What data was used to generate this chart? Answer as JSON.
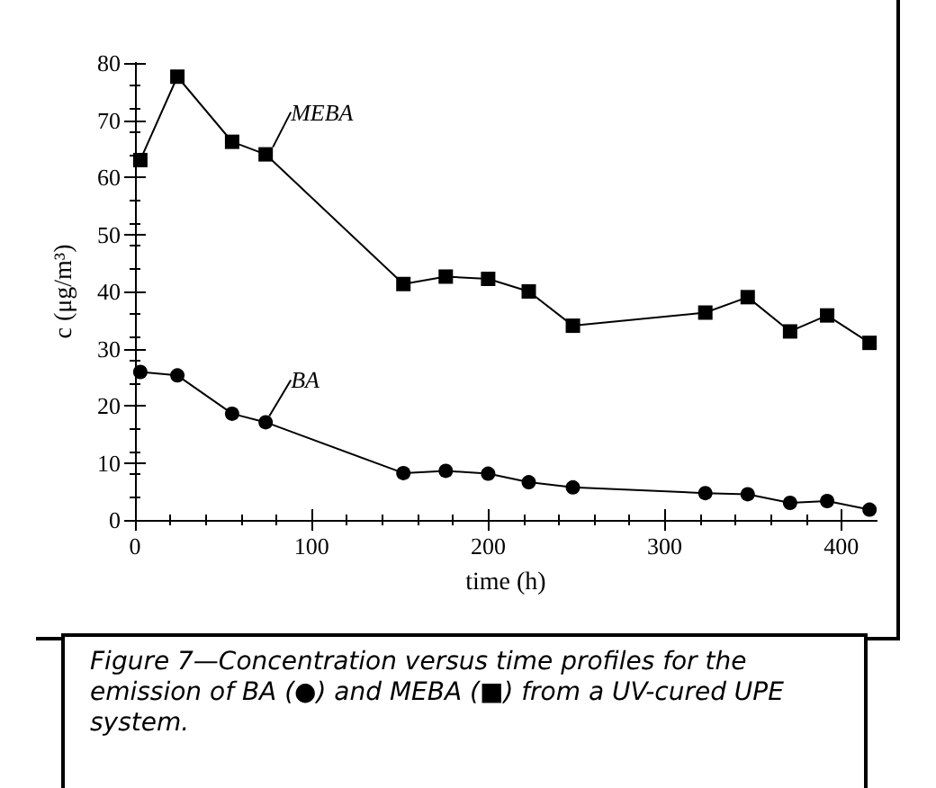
{
  "chart_data": {
    "type": "line",
    "xlabel": "time (h)",
    "ylabel": "c (μg/m³)",
    "xlim": [
      0,
      420
    ],
    "xticks": [
      0,
      100,
      200,
      300,
      400
    ],
    "ylim": [
      0,
      80
    ],
    "yticks": [
      0,
      10,
      20,
      30,
      40,
      50,
      60,
      70,
      80
    ],
    "grid": false,
    "legend": false,
    "line_style": "solid",
    "series": [
      {
        "name": "MEBA",
        "color": "#000000",
        "marker": "square",
        "x": [
          3,
          24,
          55,
          74,
          152,
          176,
          200,
          223,
          248,
          323,
          347,
          371,
          392,
          416
        ],
        "values": [
          63,
          77.6,
          66.2,
          64,
          41.3,
          42.6,
          42.2,
          40,
          34,
          36.3,
          39,
          33,
          35.8,
          31
        ]
      },
      {
        "name": "BA",
        "color": "#000000",
        "marker": "circle",
        "x": [
          3,
          24,
          55,
          74,
          152,
          176,
          200,
          223,
          248,
          323,
          347,
          371,
          392,
          416
        ],
        "values": [
          25.9,
          25.3,
          18.6,
          17.1,
          8.2,
          8.6,
          8.1,
          6.6,
          5.7,
          4.7,
          4.5,
          3,
          3.3,
          1.8
        ]
      }
    ],
    "annotations": [
      "Figure 7—Concentration versus time profiles for the emission of BA (●) and MEBA (■) from a UV-cured UPE system."
    ]
  }
}
